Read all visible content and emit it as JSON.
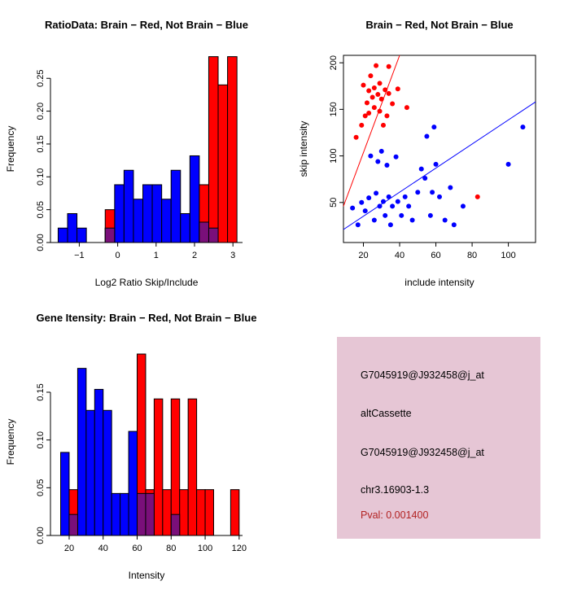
{
  "page": {
    "background": "#ffffff"
  },
  "info_box": {
    "bg_color": "#e6c6d5",
    "lines": [
      {
        "text": "G7045919@J932458@j_at",
        "color": "#000000"
      },
      {
        "text": "altCassette",
        "color": "#000000"
      },
      {
        "text": "G7045919@J932458@j_at",
        "color": "#000000"
      },
      {
        "text": "chr3.16903-1.3",
        "color": "#000000"
      },
      {
        "text": "Pval: 0.001400",
        "color": "#b22222"
      }
    ]
  },
  "colors": {
    "brain": "#ff0000",
    "not_brain": "#0000ff",
    "overlap": "#7a0f7a"
  },
  "chart_data": [
    {
      "id": "ratio_hist",
      "type": "bar",
      "title": "RatioData: Brain − Red, Not Brain − Blue",
      "xlabel": "Log2 Ratio Skip/Include",
      "ylabel": "Frequency",
      "xlim": [
        -1.75,
        3.25
      ],
      "ylim": [
        0,
        0.285
      ],
      "xticks": [
        -1,
        0,
        1,
        2,
        3
      ],
      "xtick_labels": [
        "−1",
        "0",
        "1",
        "2",
        "3"
      ],
      "yticks": [
        0,
        0.05,
        0.1,
        0.15,
        0.2,
        0.25
      ],
      "ytick_labels": [
        "0.00",
        "0.05",
        "0.10",
        "0.15",
        "0.20",
        "0.25"
      ],
      "bin_start": -1.55,
      "bin_width": 0.245,
      "series": [
        {
          "name": "not-brain",
          "color": "#0000ff",
          "values": [
            0.022,
            0.044,
            0.022,
            0,
            0,
            0.022,
            0.088,
            0.11,
            0.066,
            0.088,
            0.088,
            0.066,
            0.11,
            0.044,
            0.132,
            0.031,
            0.022,
            0,
            0
          ]
        },
        {
          "name": "brain",
          "color": "#ff0000",
          "values": [
            0,
            0,
            0,
            0,
            0,
            0.05,
            0,
            0,
            0,
            0,
            0,
            0,
            0,
            0,
            0,
            0.088,
            0.283,
            0.24,
            0.283
          ]
        }
      ],
      "overlap_color": "#7a0f7a",
      "grid": false,
      "legend_position": "none"
    },
    {
      "id": "scatter",
      "type": "scatter",
      "title": "Brain − Red, Not Brain − Blue",
      "xlabel": "include intensity",
      "ylabel": "skip intensity",
      "xlim": [
        9,
        115
      ],
      "ylim": [
        7,
        208
      ],
      "xticks": [
        20,
        40,
        60,
        80,
        100
      ],
      "xtick_labels": [
        "20",
        "40",
        "60",
        "80",
        "100"
      ],
      "yticks": [
        50,
        100,
        150,
        200
      ],
      "ytick_labels": [
        "50",
        "100",
        "150",
        "200"
      ],
      "series": [
        {
          "name": "brain",
          "color": "#ff0000",
          "points": [
            [
              16,
              120
            ],
            [
              19,
              133
            ],
            [
              21,
              143
            ],
            [
              20,
              176
            ],
            [
              22,
              157
            ],
            [
              23,
              170
            ],
            [
              23,
              146
            ],
            [
              24,
              186
            ],
            [
              25,
              163
            ],
            [
              26,
              173
            ],
            [
              26,
              152
            ],
            [
              27,
              197
            ],
            [
              28,
              166
            ],
            [
              29,
              178
            ],
            [
              29,
              148
            ],
            [
              30,
              161
            ],
            [
              31,
              133
            ],
            [
              32,
              171
            ],
            [
              33,
              143
            ],
            [
              34,
              167
            ],
            [
              34,
              196
            ],
            [
              36,
              156
            ],
            [
              39,
              172
            ],
            [
              44,
              152
            ],
            [
              83,
              56
            ]
          ],
          "line": [
            [
              9,
              46
            ],
            [
              40,
              208
            ]
          ]
        },
        {
          "name": "not-brain",
          "color": "#0000ff",
          "points": [
            [
              14,
              44
            ],
            [
              17,
              26
            ],
            [
              19,
              50
            ],
            [
              21,
              41
            ],
            [
              23,
              55
            ],
            [
              24,
              100
            ],
            [
              26,
              31
            ],
            [
              27,
              60
            ],
            [
              28,
              94
            ],
            [
              29,
              46
            ],
            [
              30,
              105
            ],
            [
              31,
              51
            ],
            [
              32,
              36
            ],
            [
              33,
              90
            ],
            [
              34,
              56
            ],
            [
              35,
              26
            ],
            [
              36,
              46
            ],
            [
              38,
              99
            ],
            [
              39,
              51
            ],
            [
              41,
              36
            ],
            [
              43,
              56
            ],
            [
              45,
              46
            ],
            [
              47,
              31
            ],
            [
              50,
              61
            ],
            [
              52,
              86
            ],
            [
              54,
              76
            ],
            [
              55,
              121
            ],
            [
              57,
              36
            ],
            [
              58,
              61
            ],
            [
              59,
              131
            ],
            [
              60,
              91
            ],
            [
              62,
              56
            ],
            [
              65,
              31
            ],
            [
              68,
              66
            ],
            [
              70,
              26
            ],
            [
              75,
              46
            ],
            [
              100,
              91
            ],
            [
              108,
              131
            ]
          ],
          "line": [
            [
              9,
              21
            ],
            [
              115,
              158
            ]
          ]
        }
      ],
      "grid": false,
      "legend_position": "none"
    },
    {
      "id": "gene_hist",
      "type": "bar",
      "title": "Gene Itensity: Brain − Red, Not Brain − Blue",
      "xlabel": "Intensity",
      "ylabel": "Frequency",
      "xlim": [
        9,
        122
      ],
      "ylim": [
        0,
        0.196
      ],
      "xticks": [
        20,
        40,
        60,
        80,
        100,
        120
      ],
      "xtick_labels": [
        "20",
        "40",
        "60",
        "80",
        "100",
        "120"
      ],
      "yticks": [
        0,
        0.05,
        0.1,
        0.15
      ],
      "ytick_labels": [
        "0.00",
        "0.05",
        "0.10",
        "0.15"
      ],
      "bin_start": 15,
      "bin_width": 5,
      "series": [
        {
          "name": "not-brain",
          "color": "#0000ff",
          "values": [
            0.087,
            0.022,
            0.175,
            0.131,
            0.153,
            0.131,
            0.044,
            0.044,
            0.109,
            0.044,
            0.044,
            0,
            0,
            0.022,
            0,
            0,
            0,
            0,
            0,
            0,
            0
          ]
        },
        {
          "name": "brain",
          "color": "#ff0000",
          "values": [
            0,
            0.048,
            0,
            0,
            0,
            0,
            0,
            0,
            0,
            0.19,
            0.048,
            0.143,
            0.048,
            0.143,
            0.048,
            0.143,
            0.048,
            0.048,
            0,
            0,
            0.048
          ]
        }
      ],
      "overlap_color": "#7a0f7a",
      "grid": false,
      "legend_position": "none"
    }
  ]
}
